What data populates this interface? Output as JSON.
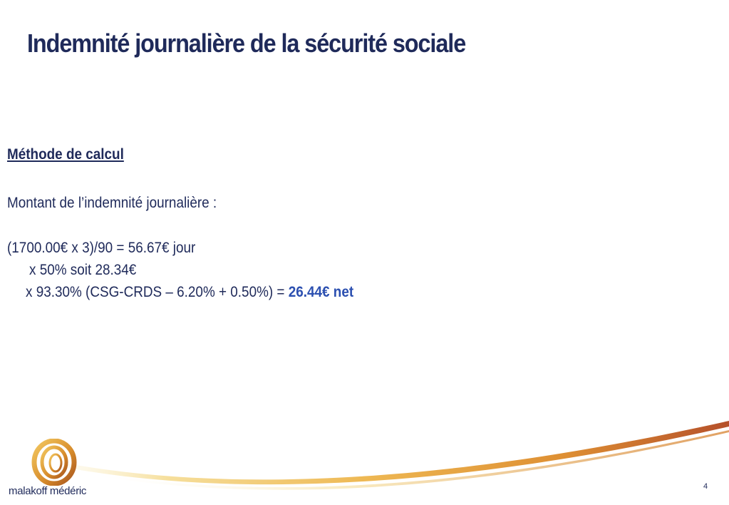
{
  "slide": {
    "title": "Indemnité journalière de la sécurité sociale",
    "section_heading": "Méthode de calcul",
    "intro_line": "Montant de l’indemnité journalière :",
    "calc_line_1": "(1700.00€ x 3)/90 = 56.67€ jour",
    "calc_line_2": "x 50% soit 28.34€",
    "calc_line_3_prefix": "x 93.30% (CSG-CRDS – 6.20% + 0.50%) = ",
    "calc_line_3_result": "26.44€ net",
    "page_number": "4"
  },
  "brand": {
    "name": "malakoff médéric",
    "logo_icon": "rings-logo-icon"
  },
  "colors": {
    "title": "#1f2a5a",
    "result_highlight": "#2b4fb0",
    "swoosh_light": "#f4d98a",
    "swoosh_mid": "#e8a93a",
    "swoosh_dark": "#b5502a"
  }
}
